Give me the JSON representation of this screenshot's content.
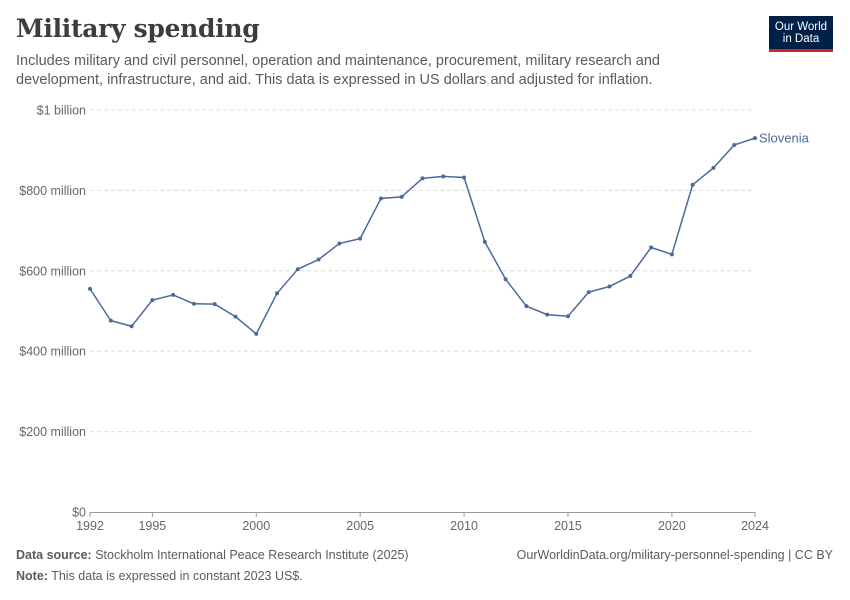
{
  "header": {
    "title": "Military spending",
    "subtitle": "Includes military and civil personnel, operation and maintenance, procurement, military research and development, infrastructure, and aid. This data is expressed in US dollars and adjusted for inflation.",
    "logo_line1": "Our World",
    "logo_line2": "in Data"
  },
  "footer": {
    "source_label": "Data source:",
    "source_text": "Stockholm International Peace Research Institute (2025)",
    "url_text": "OurWorldinData.org/military-personnel-spending | CC BY",
    "note_label": "Note:",
    "note_text": "This data is expressed in constant 2023 US$."
  },
  "colors": {
    "series": "#4c6a9c",
    "grid": "#dddddd",
    "axis": "#999999"
  },
  "chart_data": {
    "type": "line",
    "title": "Military spending",
    "xlabel": "",
    "ylabel": "",
    "xlim": [
      1992,
      2024
    ],
    "ylim": [
      0,
      1000000000
    ],
    "grid": true,
    "legend": "inline-end-label",
    "x_ticks": [
      1992,
      1995,
      2000,
      2005,
      2010,
      2015,
      2020,
      2024
    ],
    "x_tick_labels": [
      "1992",
      "1995",
      "2000",
      "2005",
      "2010",
      "2015",
      "2020",
      "2024"
    ],
    "y_ticks": [
      0,
      200000000,
      400000000,
      600000000,
      800000000,
      1000000000
    ],
    "y_tick_labels": [
      "$0",
      "$200 million",
      "$400 million",
      "$600 million",
      "$800 million",
      "$1 billion"
    ],
    "series": [
      {
        "name": "Slovenia",
        "x": [
          1992,
          1993,
          1994,
          1995,
          1996,
          1997,
          1998,
          1999,
          2000,
          2001,
          2002,
          2003,
          2004,
          2005,
          2006,
          2007,
          2008,
          2009,
          2010,
          2011,
          2012,
          2013,
          2014,
          2015,
          2016,
          2017,
          2018,
          2019,
          2020,
          2021,
          2022,
          2023,
          2024
        ],
        "values": [
          555000000,
          476000000,
          462000000,
          527000000,
          540000000,
          518000000,
          517000000,
          486000000,
          443000000,
          544000000,
          604000000,
          628000000,
          668000000,
          680000000,
          780000000,
          784000000,
          830000000,
          835000000,
          832000000,
          672000000,
          579000000,
          512000000,
          491000000,
          487000000,
          547000000,
          561000000,
          587000000,
          658000000,
          641000000,
          814000000,
          856000000,
          913000000,
          930000000
        ]
      }
    ]
  }
}
